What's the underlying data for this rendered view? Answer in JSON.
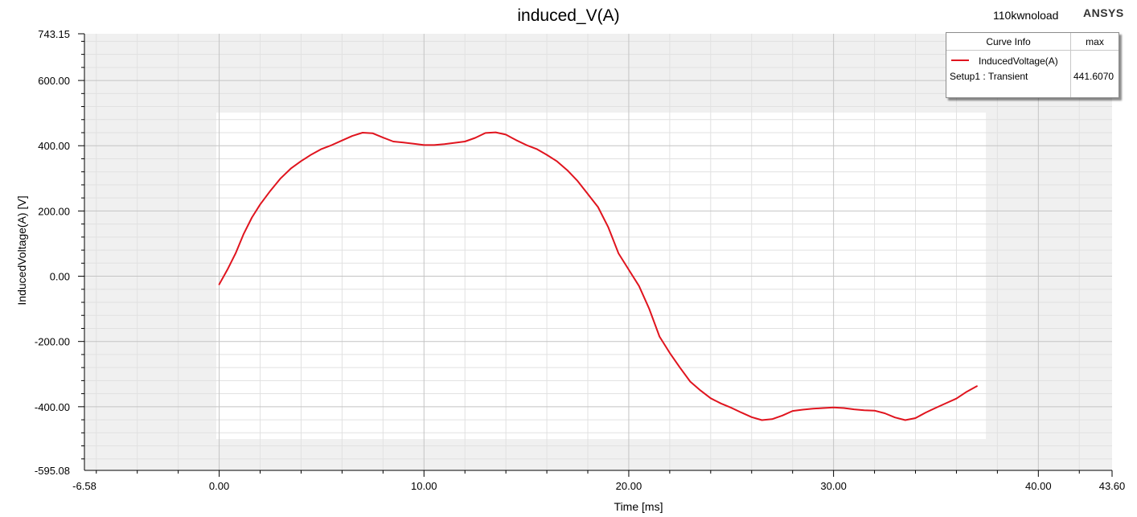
{
  "chart_data": {
    "type": "line",
    "title": "induced_V(A)",
    "xlabel": "Time [ms]",
    "ylabel": "InducedVoltage(A) [V]",
    "xlim": [
      -6.58,
      43.6
    ],
    "ylim": [
      -595.08,
      743.15
    ],
    "x_ticks": [
      "-6.58",
      "0.00",
      "10.00",
      "20.00",
      "30.00",
      "40.00",
      "43.60"
    ],
    "x_tick_values": [
      -6.58,
      0,
      10,
      20,
      30,
      40,
      43.6
    ],
    "y_ticks": [
      "743.15",
      "600.00",
      "400.00",
      "200.00",
      "0.00",
      "-200.00",
      "-400.00",
      "-595.08"
    ],
    "y_tick_values": [
      743.15,
      600,
      400,
      200,
      0,
      -200,
      -400,
      -595.08
    ],
    "grid": true,
    "legend_position": "top-right",
    "series": [
      {
        "name": "InducedVoltage(A)",
        "color": "#e0141e",
        "x": [
          0,
          0.4,
          0.8,
          1.2,
          1.6,
          2.0,
          2.5,
          3.0,
          3.5,
          4.0,
          4.5,
          5.0,
          5.5,
          6.0,
          6.5,
          7.0,
          7.5,
          8.0,
          8.5,
          9.0,
          9.5,
          10.0,
          10.5,
          11.0,
          11.5,
          12.0,
          12.5,
          13.0,
          13.5,
          14.0,
          14.5,
          15.0,
          15.5,
          16.0,
          16.5,
          17.0,
          17.5,
          18.0,
          18.5,
          19.0,
          19.5,
          20.0,
          20.5,
          21.0,
          21.5,
          22.0,
          22.5,
          23.0,
          23.5,
          24.0,
          24.5,
          25.0,
          25.5,
          26.0,
          26.5,
          27.0,
          27.5,
          28.0,
          28.5,
          29.0,
          29.5,
          30.0,
          30.5,
          31.0,
          31.5,
          32.0,
          32.5,
          33.0,
          33.5,
          34.0,
          34.5,
          35.0,
          35.5,
          36.0,
          36.5,
          37.0
        ],
        "y": [
          -25,
          20,
          70,
          130,
          180,
          220,
          262,
          300,
          330,
          353,
          373,
          390,
          402,
          416,
          430,
          440,
          438,
          425,
          413,
          410,
          406,
          402,
          402,
          405,
          409,
          413,
          424,
          439,
          441,
          434,
          417,
          402,
          390,
          372,
          352,
          325,
          292,
          252,
          212,
          150,
          70,
          20,
          -30,
          -100,
          -185,
          -235,
          -280,
          -323,
          -350,
          -374,
          -390,
          -403,
          -418,
          -432,
          -441,
          -438,
          -427,
          -413,
          -409,
          -406,
          -404,
          -402,
          -404,
          -408,
          -411,
          -412,
          -420,
          -433,
          -441,
          -435,
          -418,
          -403,
          -389,
          -375,
          -354,
          -337
        ]
      }
    ]
  },
  "header": {
    "title": "induced_V(A)",
    "project": "110kwnoload",
    "brand": "ANSYS"
  },
  "legend": {
    "col_curve": "Curve Info",
    "col_max": "max",
    "curve_name": "InducedVoltage(A)",
    "curve_context": "Setup1 : Transient",
    "curve_max": "441.6070"
  }
}
